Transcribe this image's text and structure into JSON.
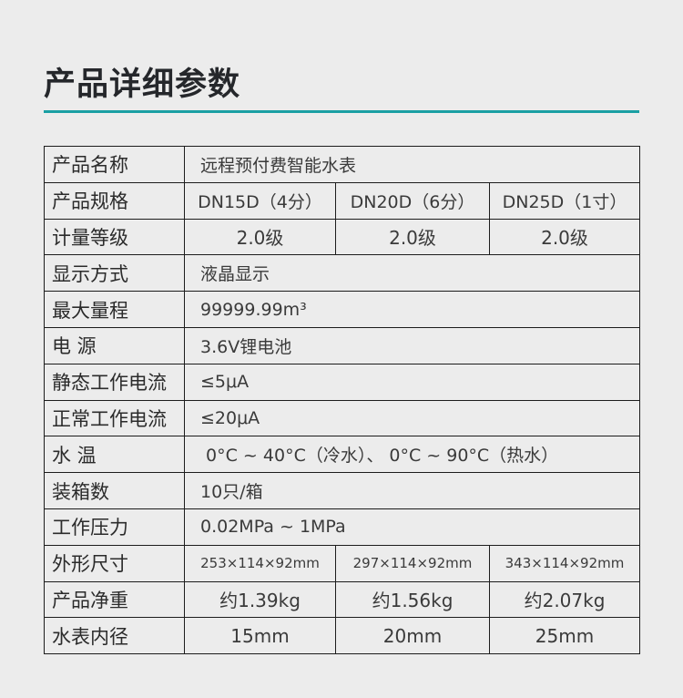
{
  "title": "产品详细参数",
  "accent_color": "#1a9fa3",
  "rows": [
    {
      "label": "产品名称",
      "value": "远程预付费智能水表"
    },
    {
      "label": "产品规格",
      "values": [
        "DN15D（4分）",
        "DN20D（6分）",
        "DN25D（1寸）"
      ]
    },
    {
      "label": "计量等级",
      "values": [
        "2.0级",
        "2.0级",
        "2.0级"
      ]
    },
    {
      "label": "显示方式",
      "value": "液晶显示"
    },
    {
      "label": "最大量程",
      "value": "99999.99m³"
    },
    {
      "label": "电  源",
      "value": "3.6V锂电池"
    },
    {
      "label": "静态工作电流",
      "value": "≤5μA"
    },
    {
      "label": "正常工作电流",
      "value": "≤20μA"
    },
    {
      "label": "水  温",
      "value": " 0°C ~ 40°C（冷水）、 0°C ~ 90°C（热水）"
    },
    {
      "label": "装箱数",
      "value": "10只/箱"
    },
    {
      "label": "工作压力",
      "value": "0.02MPa ~ 1MPa"
    },
    {
      "label": "外形尺寸",
      "values": [
        "253×114×92mm",
        "297×114×92mm",
        "343×114×92mm"
      ]
    },
    {
      "label": "产品净重",
      "values": [
        "约1.39kg",
        "约1.56kg",
        "约2.07kg"
      ]
    },
    {
      "label": "水表内径",
      "values": [
        "15mm",
        "20mm",
        "25mm"
      ]
    }
  ]
}
